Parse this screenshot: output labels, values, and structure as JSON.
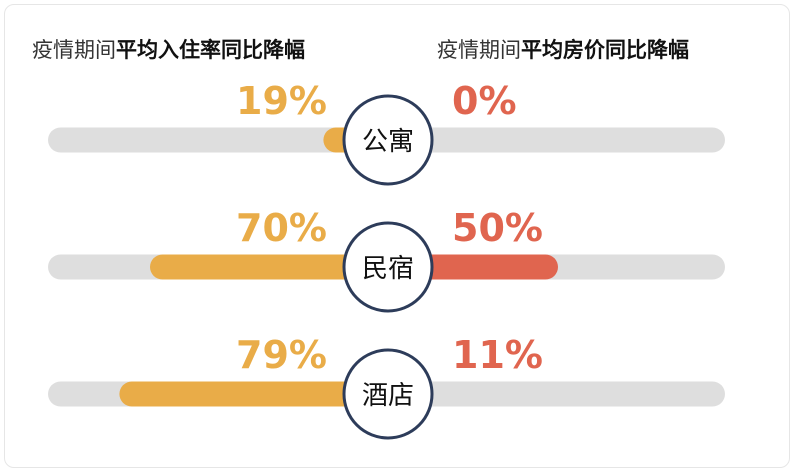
{
  "headings": {
    "left_prefix": "疫情期间",
    "left_bold": "平均入住率同比降幅",
    "right_prefix": "疫情期间",
    "right_bold": "平均房价同比降幅"
  },
  "colors": {
    "occupancy": "#e9ac48",
    "price": "#e0654f",
    "track": "#dedede",
    "circle_stroke": "#2d3c5a"
  },
  "chart_data": {
    "type": "bar",
    "categories": [
      "公寓",
      "民宿",
      "酒店"
    ],
    "series": [
      {
        "name": "平均入住率同比降幅",
        "values": [
          19,
          70,
          79
        ],
        "labels": [
          "19%",
          "70%",
          "79%"
        ]
      },
      {
        "name": "平均房价同比降幅",
        "values": [
          0,
          50,
          11
        ],
        "labels": [
          "0%",
          "50%",
          "11%"
        ]
      }
    ],
    "unit": "%"
  }
}
